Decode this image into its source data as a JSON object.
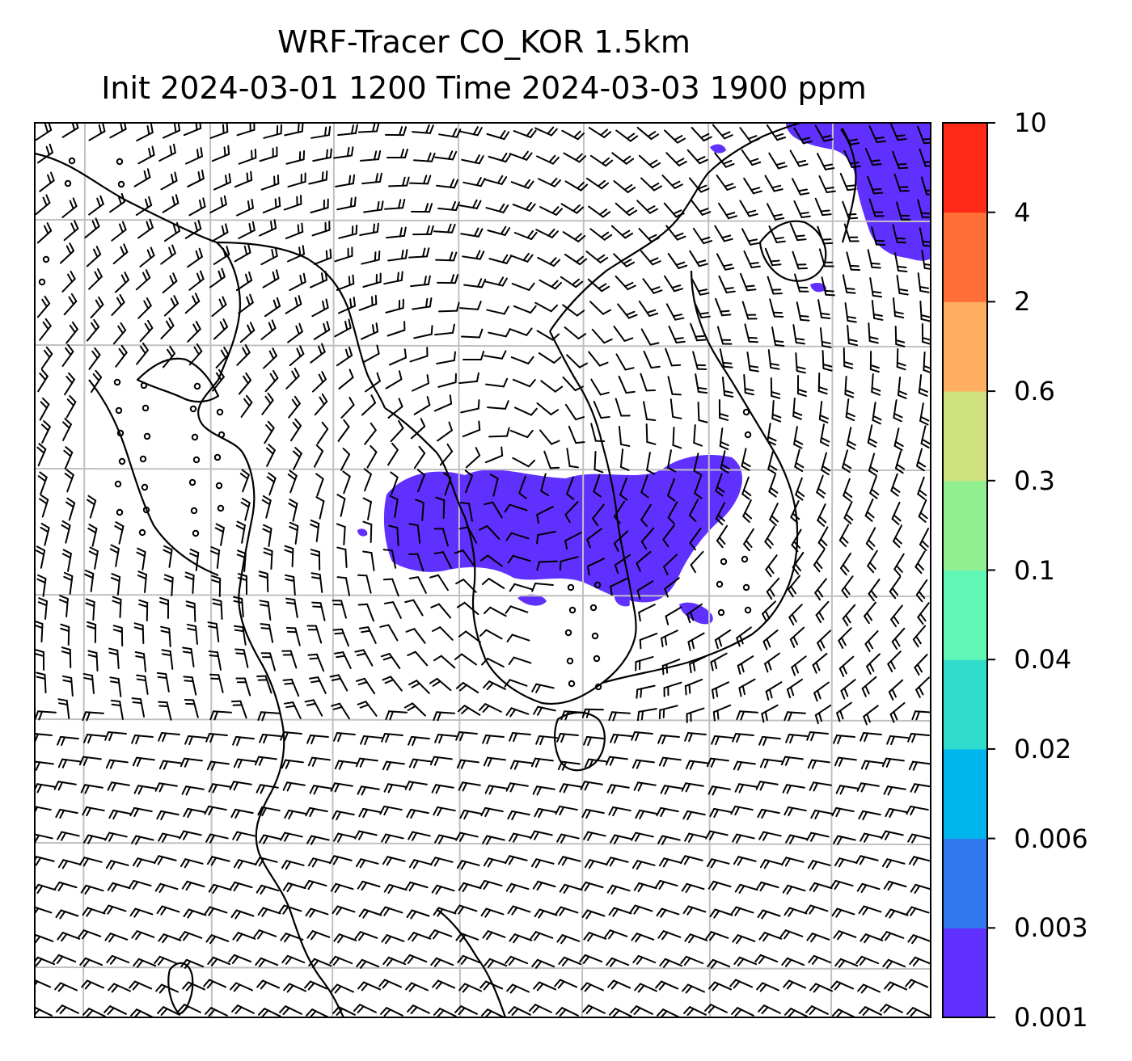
{
  "title": {
    "line1": "WRF-Tracer CO_KOR 1.5km",
    "line2": "Init 2024-03-01 1200 Time 2024-03-03 1900 ppm"
  },
  "colorbar": {
    "levels": [
      "0.001",
      "0.003",
      "0.006",
      "0.02",
      "0.04",
      "0.1",
      "0.3",
      "0.6",
      "2",
      "4",
      "10"
    ],
    "colors": [
      "#6030ff",
      "#3278f0",
      "#00b4ec",
      "#30dccc",
      "#60f6b4",
      "#90f090",
      "#cfe07e",
      "#feb060",
      "#ff7038",
      "#ff2a18"
    ]
  },
  "legend_colors": {
    "plume": "#6030ff",
    "grid": "#c0c0c0",
    "coast": "#000000"
  },
  "plume_level": "0.001-0.003"
}
